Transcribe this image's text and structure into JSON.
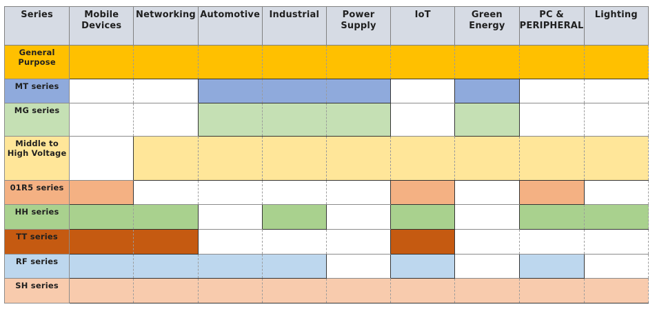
{
  "colors": {
    "header_bg": "#d6dbe4",
    "general": "#ffc000",
    "mt": "#8faadc",
    "mg": "#c5e0b4",
    "middle": "#ffe699",
    "o1r5": "#f4b183",
    "hh": "#a9d18e",
    "tt": "#c55a11",
    "rf": "#bdd7ee",
    "sh": "#f8cbad",
    "white": "#ffffff"
  },
  "header": {
    "series": "Series",
    "columns": [
      "Mobile Devices",
      "Networking",
      "Automotive",
      "Industrial",
      "Power Supply",
      "IoT",
      "Green Energy",
      "PC & PERIPHERAL",
      "Lighting"
    ]
  },
  "rows": [
    {
      "label": "General Purpose",
      "color": "general",
      "fill": [
        1,
        1,
        1,
        1,
        1,
        1,
        1,
        1,
        1
      ]
    },
    {
      "label": "MT series",
      "color": "mt",
      "fill": [
        0,
        0,
        1,
        1,
        1,
        0,
        1,
        0,
        0
      ]
    },
    {
      "label": "MG series",
      "color": "mg",
      "fill": [
        0,
        0,
        1,
        1,
        1,
        0,
        1,
        0,
        0
      ]
    },
    {
      "label": "Middle to High Voltage",
      "color": "middle",
      "fill": [
        0,
        1,
        1,
        1,
        1,
        1,
        1,
        1,
        1
      ]
    },
    {
      "label": "01R5 series",
      "color": "o1r5",
      "fill": [
        1,
        0,
        0,
        0,
        0,
        1,
        0,
        1,
        0
      ]
    },
    {
      "label": "HH series",
      "color": "hh",
      "fill": [
        1,
        1,
        0,
        1,
        0,
        1,
        0,
        1,
        1
      ]
    },
    {
      "label": "TT series",
      "color": "tt",
      "fill": [
        1,
        1,
        0,
        0,
        0,
        1,
        0,
        0,
        0
      ]
    },
    {
      "label": "RF series",
      "color": "rf",
      "fill": [
        1,
        1,
        1,
        1,
        0,
        1,
        0,
        1,
        0
      ]
    },
    {
      "label": "SH series",
      "color": "sh",
      "fill": [
        1,
        1,
        1,
        1,
        1,
        1,
        1,
        1,
        1
      ]
    }
  ]
}
